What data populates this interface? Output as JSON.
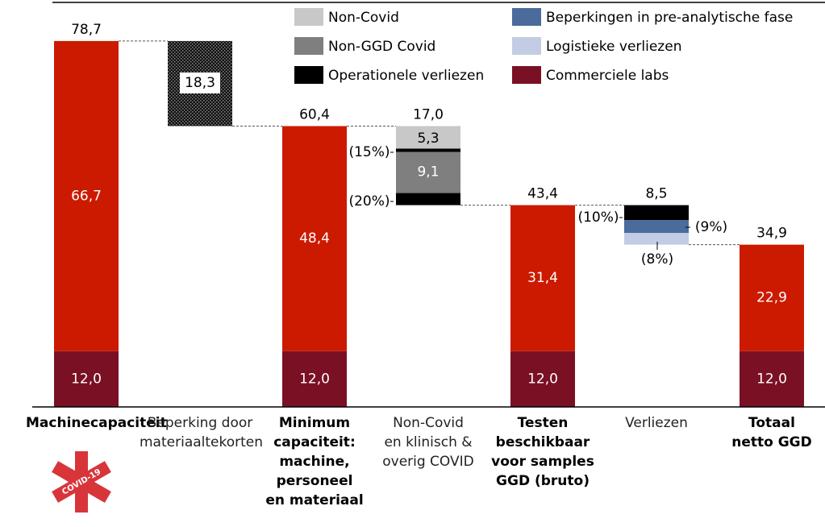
{
  "chart_data": {
    "type": "waterfall",
    "categories": [
      "Machinecapaciteit",
      "Beperking door\nmateriaaltekorten",
      "Minimum\ncapaciteit:\nmachine,\npersoneel\nen materiaal",
      "Non-Covid\nen klinisch &\noverig COVID",
      "Testen\nbeschikbaar\nvoor samples\nGGD (bruto)",
      "Verliezen",
      "Totaal\nnetto GGD"
    ],
    "measure": [
      "total",
      "relative",
      "total",
      "relative",
      "total",
      "relative",
      "total"
    ],
    "values": [
      78.7,
      18.3,
      60.4,
      17.0,
      43.4,
      8.5,
      34.9
    ],
    "value_labels": [
      "78,7",
      null,
      "60,4",
      "17,0",
      "43,4",
      "8,5",
      "34,9"
    ],
    "series": [
      {
        "name": "Non-Covid",
        "color": "#c8c8c8",
        "values": [
          null,
          null,
          null,
          5.3,
          null,
          null,
          null
        ],
        "value_labels": [
          null,
          null,
          null,
          "5,3",
          null,
          null,
          null
        ]
      },
      {
        "name": "Non-GGD Covid",
        "color": "#7f7f7f",
        "values": [
          null,
          null,
          null,
          9.1,
          null,
          null,
          null
        ],
        "value_labels": [
          null,
          null,
          null,
          "9,1",
          null,
          null,
          null
        ]
      },
      {
        "name": "Operationele verliezen",
        "color": "#000000",
        "values": [
          null,
          null,
          null,
          2.6,
          null,
          3.2,
          null
        ]
      },
      {
        "name": "Beperkingen in pre-analytische fase",
        "color": "#4a6b9c",
        "values": [
          null,
          null,
          null,
          null,
          null,
          2.8,
          null
        ]
      },
      {
        "name": "Logistieke verliezen",
        "color": "#c3cce5",
        "values": [
          null,
          null,
          null,
          null,
          null,
          2.5,
          null
        ]
      },
      {
        "name": "Commerciele labs",
        "color": "#7a1024",
        "values": [
          12.0,
          null,
          12.0,
          null,
          12.0,
          null,
          12.0
        ],
        "value_labels": [
          "12,0",
          null,
          "12,0",
          null,
          "12,0",
          null,
          "12,0"
        ]
      },
      {
        "color": "#cc1a00",
        "values": [
          66.7,
          null,
          48.4,
          null,
          31.4,
          null,
          22.9
        ],
        "value_labels": [
          "66,7",
          null,
          "48,4",
          null,
          "31,4",
          null,
          "22,9"
        ]
      },
      {
        "color": "#000000",
        "pattern": "dots",
        "values": [
          null,
          18.3,
          null,
          null,
          null,
          null,
          null
        ],
        "value_labels": [
          null,
          "18,3",
          null,
          null,
          null,
          null,
          null
        ]
      }
    ],
    "annotations": [
      "(15%)",
      "(20%)",
      "(10%)",
      "(9%)",
      "(8%)"
    ],
    "logo_text": "COVID-19",
    "ylim": [
      0,
      87
    ]
  }
}
